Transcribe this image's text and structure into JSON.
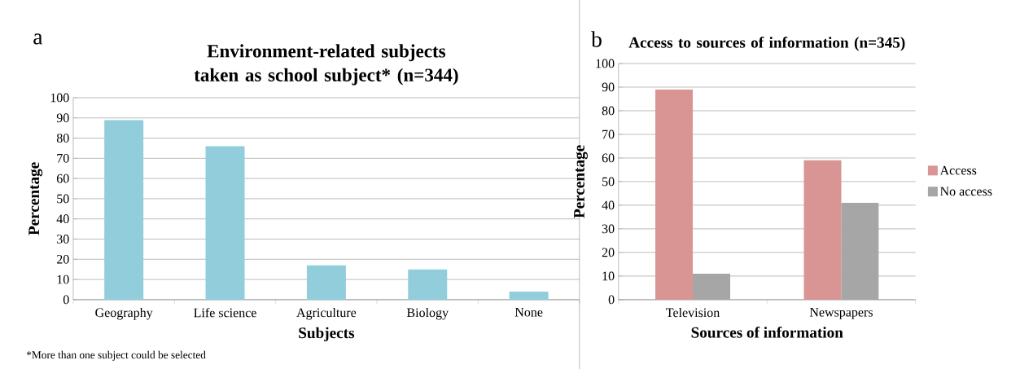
{
  "chart_data": [
    {
      "type": "bar",
      "title": "Environment-related subjects taken as school subject* (n=344)",
      "xlabel": "Subjects",
      "ylabel": "Percentage",
      "categories": [
        "Geography",
        "Life science",
        "Agriculture",
        "Biology",
        "None"
      ],
      "series": [
        {
          "color": "#92cddc",
          "values": [
            89,
            76,
            17,
            15,
            4
          ]
        }
      ],
      "ylim": [
        0,
        100
      ],
      "yticks": [
        0,
        10,
        20,
        30,
        40,
        50,
        60,
        70,
        80,
        90,
        100
      ],
      "grid": "y",
      "legend": false,
      "annotations": [
        "a",
        "*More than one subject could be selected"
      ]
    },
    {
      "type": "bar",
      "title": "Access to sources of information (n=345)",
      "xlabel": "Sources of information",
      "ylabel": "Percentage",
      "categories": [
        "Television",
        "Newspapers"
      ],
      "series": [
        {
          "name": "Access",
          "color": "#d99594",
          "values": [
            89,
            59
          ]
        },
        {
          "name": "No access",
          "color": "#a6a6a6",
          "values": [
            11,
            41
          ]
        }
      ],
      "ylim": [
        0,
        100
      ],
      "yticks": [
        0,
        10,
        20,
        30,
        40,
        50,
        60,
        70,
        80,
        90,
        100
      ],
      "grid": "y",
      "legend": "right",
      "annotations": [
        "b"
      ]
    }
  ]
}
